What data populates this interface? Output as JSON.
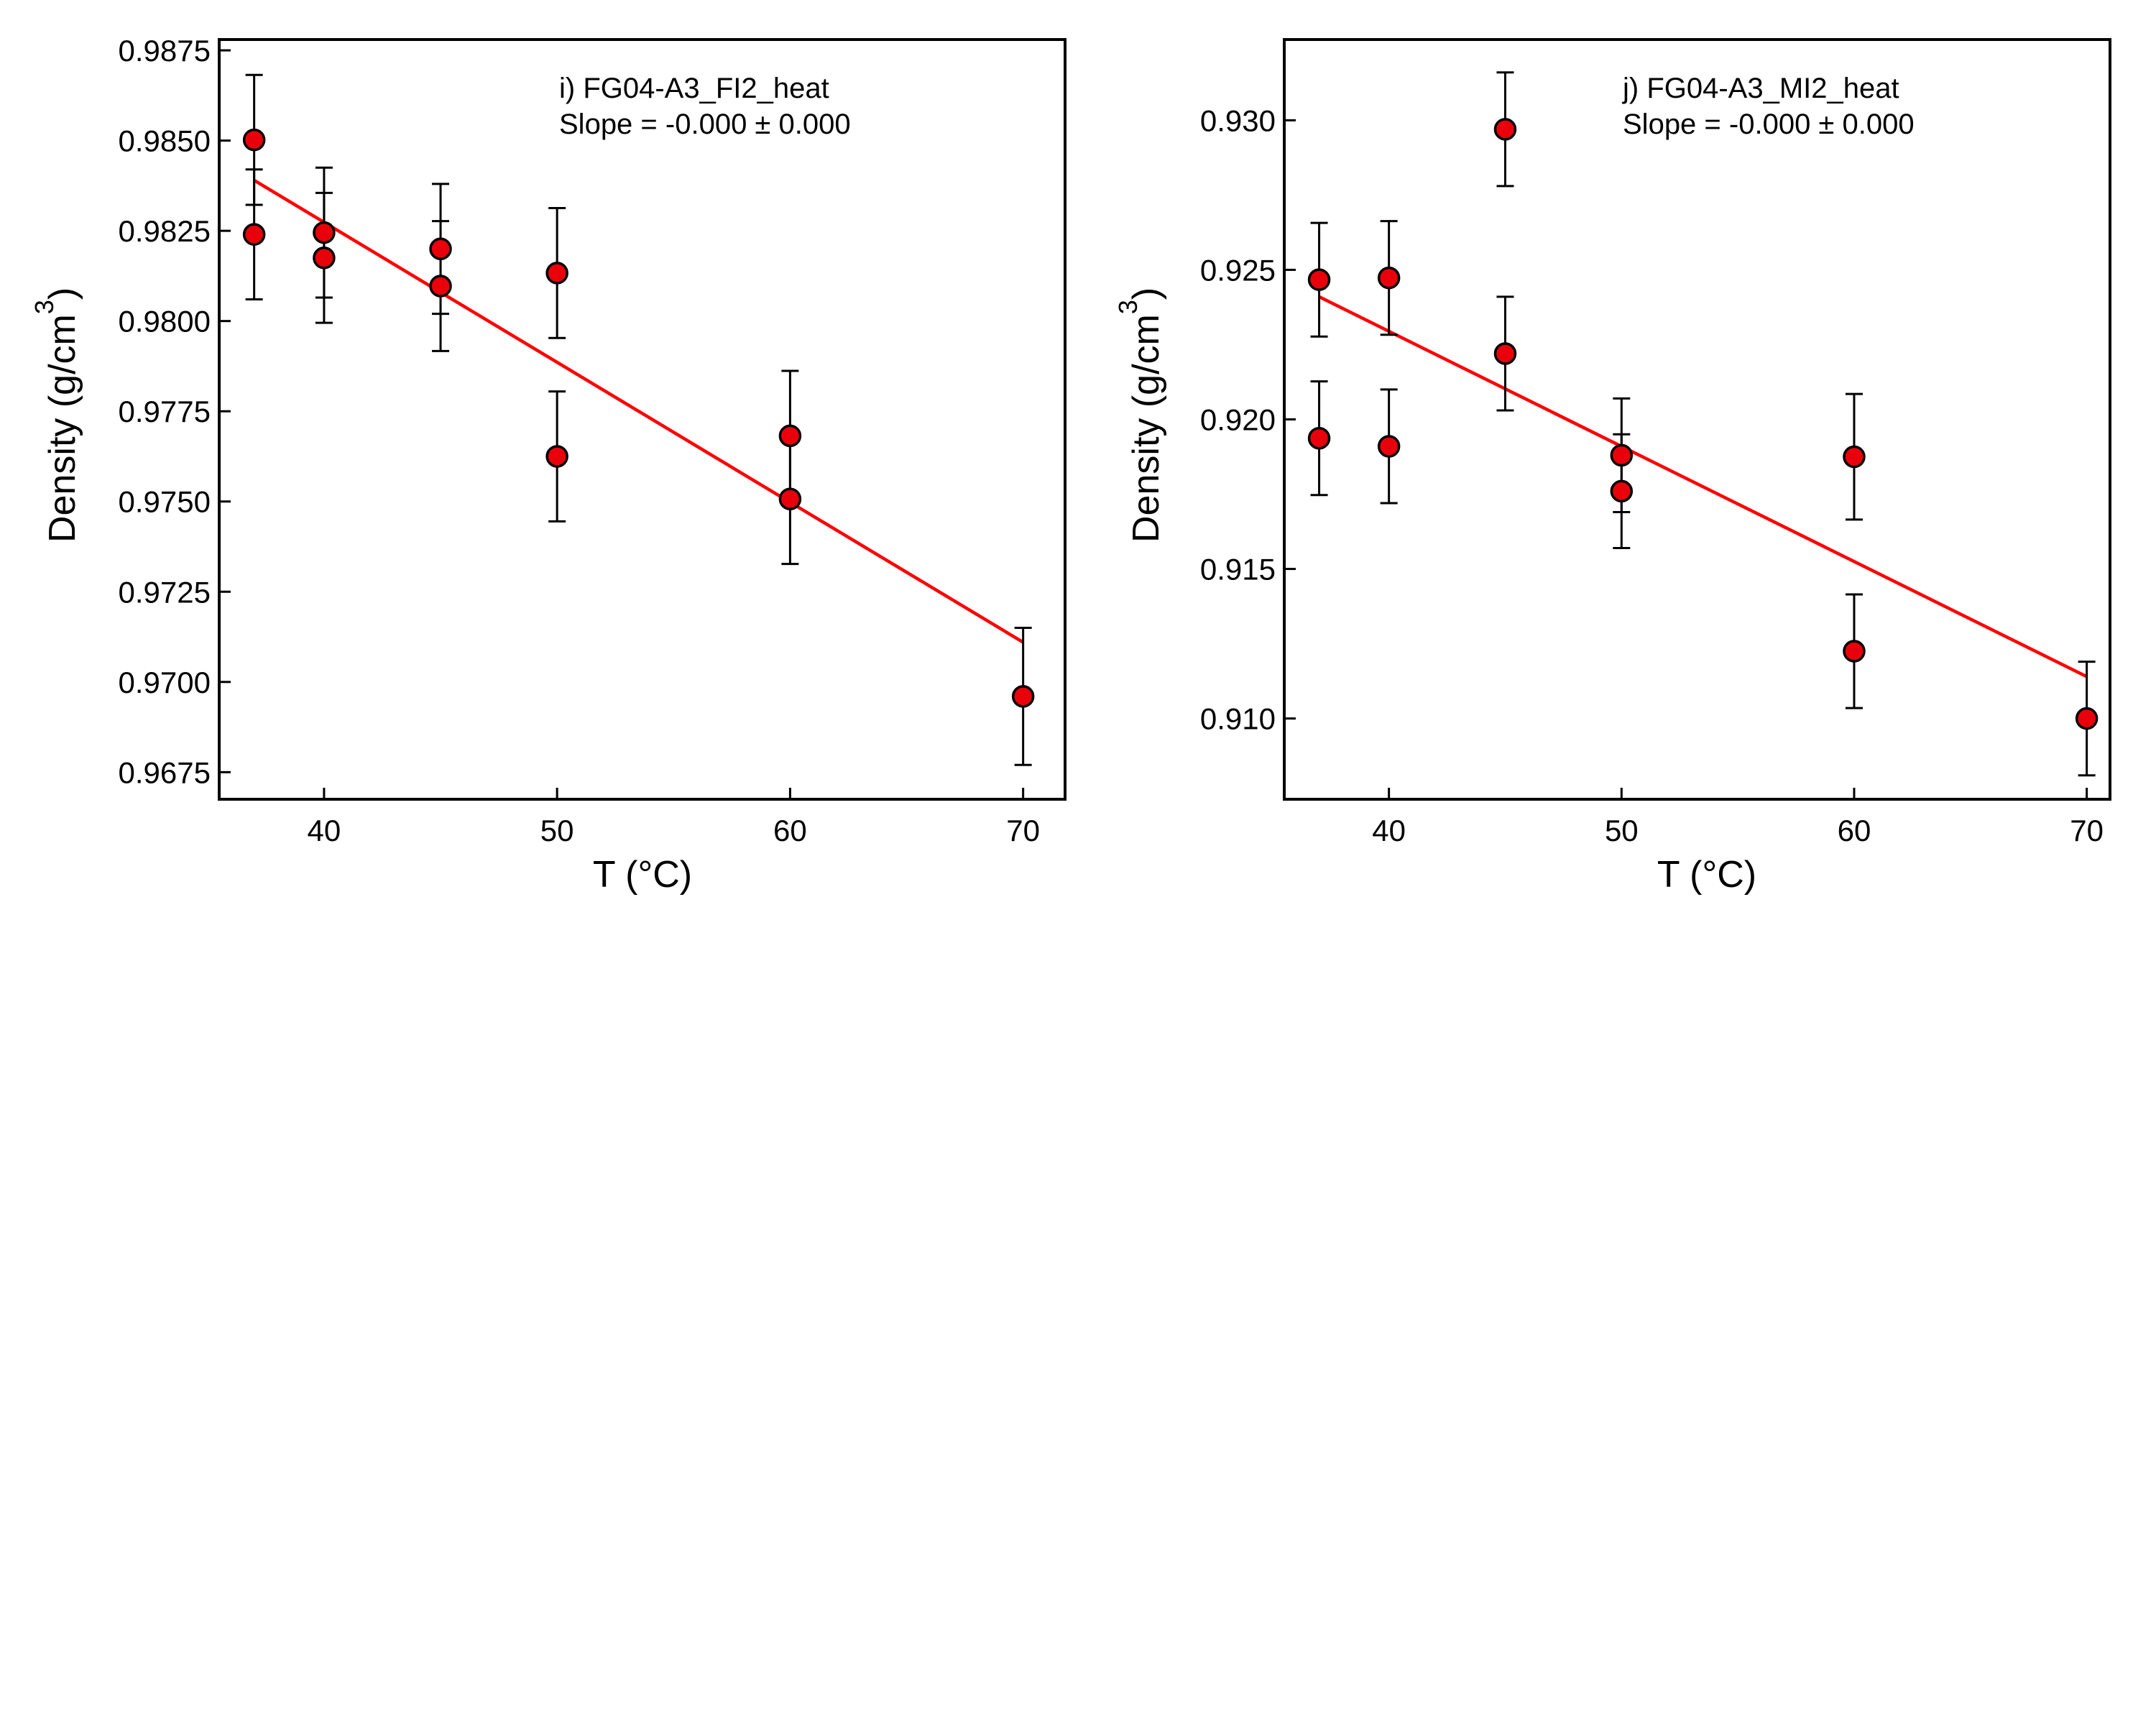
{
  "chart_data": [
    {
      "type": "scatter",
      "panel_label": "i) FG04-A3_FI2_heat",
      "annotation": "Slope = -0.000 ± 0.000",
      "xlabel": "T (°C)",
      "ylabel": "Density (g/cm",
      "ylabel_superscript": "3",
      "ylabel_close": ")",
      "xlim": [
        35.5,
        71.8
      ],
      "ylim": [
        0.96675,
        0.9878
      ],
      "xticks": [
        40,
        50,
        60,
        70
      ],
      "xtick_labels": [
        "40",
        "50",
        "60",
        "70"
      ],
      "yticks": [
        0.9675,
        0.97,
        0.9725,
        0.975,
        0.9775,
        0.98,
        0.9825,
        0.985,
        0.9875
      ],
      "ytick_labels": [
        "0.9675",
        "0.9700",
        "0.9725",
        "0.9750",
        "0.9775",
        "0.9800",
        "0.9825",
        "0.9850",
        "0.9875"
      ],
      "grid": false,
      "point_color": "#e8000b",
      "line_color": "#ff0000",
      "points": [
        {
          "x": 37,
          "y": 0.98502,
          "err": 0.0018
        },
        {
          "x": 37,
          "y": 0.9824,
          "err": 0.0018
        },
        {
          "x": 40,
          "y": 0.98245,
          "err": 0.0018
        },
        {
          "x": 40,
          "y": 0.98175,
          "err": 0.0018
        },
        {
          "x": 45,
          "y": 0.982,
          "err": 0.0018
        },
        {
          "x": 45,
          "y": 0.98097,
          "err": 0.0018
        },
        {
          "x": 50,
          "y": 0.98133,
          "err": 0.0018
        },
        {
          "x": 50,
          "y": 0.97625,
          "err": 0.0018
        },
        {
          "x": 60,
          "y": 0.97682,
          "err": 0.0018
        },
        {
          "x": 60,
          "y": 0.97507,
          "err": 0.0018
        },
        {
          "x": 70,
          "y": 0.9696,
          "err": 0.0019
        }
      ],
      "fit_line": {
        "x": [
          37,
          70
        ],
        "y": [
          0.9839,
          0.9711
        ]
      }
    },
    {
      "type": "scatter",
      "panel_label": "j) FG04-A3_MI2_heat",
      "annotation": "Slope = -0.000 ± 0.000",
      "xlabel": "T (°C)",
      "ylabel": "Density (g/cm",
      "ylabel_superscript": "3",
      "ylabel_close": ")",
      "xlim": [
        35.5,
        71.0
      ],
      "ylim": [
        0.9073,
        0.9327
      ],
      "xticks": [
        40,
        50,
        60,
        70
      ],
      "xtick_labels": [
        "40",
        "50",
        "60",
        "70"
      ],
      "yticks": [
        0.91,
        0.915,
        0.92,
        0.925,
        0.93
      ],
      "ytick_labels": [
        "0.910",
        "0.915",
        "0.920",
        "0.925",
        "0.930"
      ],
      "grid": false,
      "point_color": "#e8000b",
      "line_color": "#ff0000",
      "points": [
        {
          "x": 37,
          "y": 0.92467,
          "err": 0.0019
        },
        {
          "x": 37,
          "y": 0.91937,
          "err": 0.0019
        },
        {
          "x": 40,
          "y": 0.92473,
          "err": 0.0019
        },
        {
          "x": 40,
          "y": 0.9191,
          "err": 0.0019
        },
        {
          "x": 45,
          "y": 0.9297,
          "err": 0.0019
        },
        {
          "x": 45,
          "y": 0.9222,
          "err": 0.0019
        },
        {
          "x": 50,
          "y": 0.9188,
          "err": 0.0019
        },
        {
          "x": 50,
          "y": 0.9176,
          "err": 0.0019
        },
        {
          "x": 60,
          "y": 0.91875,
          "err": 0.0021
        },
        {
          "x": 60,
          "y": 0.91225,
          "err": 0.0019
        },
        {
          "x": 70,
          "y": 0.91,
          "err": 0.0019
        }
      ],
      "fit_line": {
        "x": [
          37,
          70
        ],
        "y": [
          0.9241,
          0.9114
        ]
      }
    }
  ]
}
